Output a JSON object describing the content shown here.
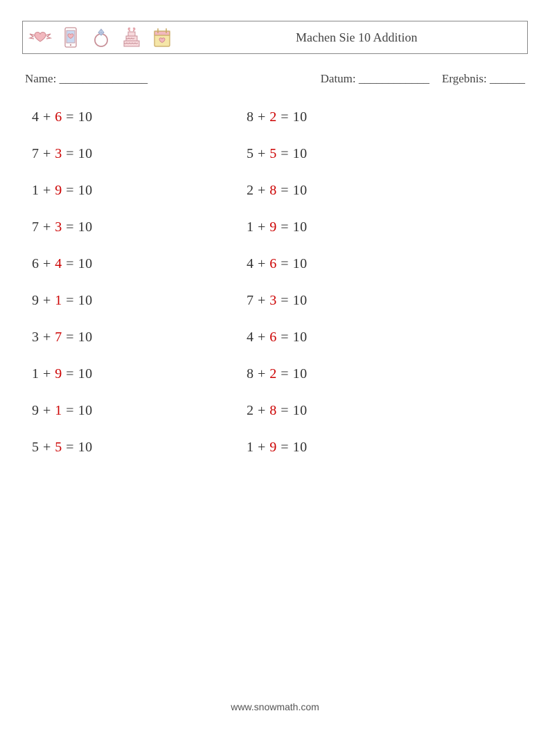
{
  "header": {
    "title": "Machen Sie 10 Addition",
    "icons": [
      "winged-heart-icon",
      "phone-heart-icon",
      "diamond-ring-icon",
      "wedding-cake-icon",
      "calendar-heart-icon"
    ]
  },
  "meta": {
    "name_label": "Name: _______________",
    "date_label": "Datum: ____________",
    "result_label": "Ergebnis: ______"
  },
  "style": {
    "text_color": "#333333",
    "answer_color": "#cc0000",
    "font_size_problem": 20,
    "font_size_header": 18,
    "font_size_meta": 17,
    "row_gap": 30,
    "icon_stroke": "#d9a0a8",
    "icon_fill_light": "#f7d9dc",
    "icon_fill_accent": "#f2b8be",
    "icon_fill_yellow": "#f5e6a8",
    "icon_fill_blue": "#c8d8f0"
  },
  "problems": {
    "left": [
      {
        "a": "4",
        "b": "6",
        "r": "10"
      },
      {
        "a": "7",
        "b": "3",
        "r": "10"
      },
      {
        "a": "1",
        "b": "9",
        "r": "10"
      },
      {
        "a": "7",
        "b": "3",
        "r": "10"
      },
      {
        "a": "6",
        "b": "4",
        "r": "10"
      },
      {
        "a": "9",
        "b": "1",
        "r": "10"
      },
      {
        "a": "3",
        "b": "7",
        "r": "10"
      },
      {
        "a": "1",
        "b": "9",
        "r": "10"
      },
      {
        "a": "9",
        "b": "1",
        "r": "10"
      },
      {
        "a": "5",
        "b": "5",
        "r": "10"
      }
    ],
    "right": [
      {
        "a": "8",
        "b": "2",
        "r": "10"
      },
      {
        "a": "5",
        "b": "5",
        "r": "10"
      },
      {
        "a": "2",
        "b": "8",
        "r": "10"
      },
      {
        "a": "1",
        "b": "9",
        "r": "10"
      },
      {
        "a": "4",
        "b": "6",
        "r": "10"
      },
      {
        "a": "7",
        "b": "3",
        "r": "10"
      },
      {
        "a": "4",
        "b": "6",
        "r": "10"
      },
      {
        "a": "8",
        "b": "2",
        "r": "10"
      },
      {
        "a": "2",
        "b": "8",
        "r": "10"
      },
      {
        "a": "1",
        "b": "9",
        "r": "10"
      }
    ]
  },
  "footer": {
    "url": "www.snowmath.com"
  }
}
